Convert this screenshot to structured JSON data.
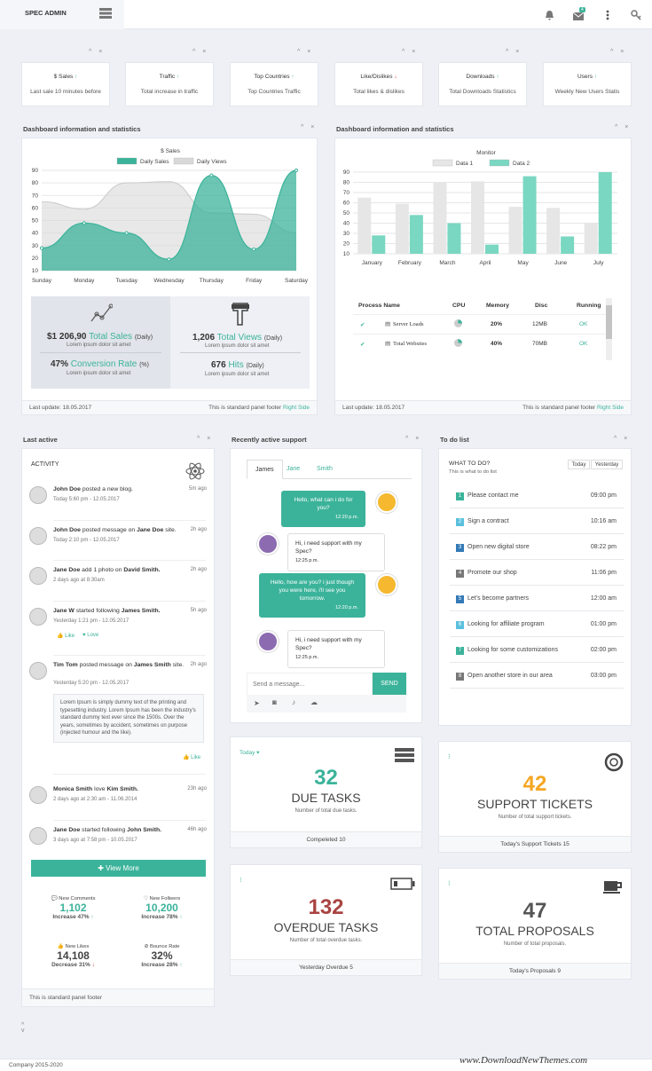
{
  "header": {
    "brand": "SPEC ADMIN",
    "notif_count": "4"
  },
  "stats": [
    {
      "title": "$ Sales",
      "sub": "Last sale 10 minutes before",
      "trend": "up"
    },
    {
      "title": "Traffic",
      "sub": "Total increase in traffic",
      "trend": "up"
    },
    {
      "title": "Top Countries",
      "sub": "Top Countries Traffic",
      "trend": "up"
    },
    {
      "title": "Like/Dislikes",
      "sub": "Total likes & dislikes",
      "trend": "down"
    },
    {
      "title": "Downloads",
      "sub": "Total Downloads Statistics",
      "trend": "up"
    },
    {
      "title": "Users",
      "sub": "Weekly New Users Statis",
      "trend": "up"
    }
  ],
  "panel1": {
    "title": "Dashboard information and statistics",
    "footer_left": "Last update: 18.05.2017",
    "footer_right_text": "This is standard panel footer",
    "footer_right_link": "Right Side",
    "sales_amount": "$1 206,90",
    "sales_label": "Total Sales",
    "sales_period": "(Daily)",
    "sales_sub": "Lorem ipsum dolor sit amet",
    "conv_amount": "47%",
    "conv_label": "Conversion Rate",
    "conv_period": "(%)",
    "conv_sub": "Lorem ipsum dolor sit amet",
    "views_amount": "1,206",
    "views_label": "Total Views",
    "views_period": "(Daily)",
    "views_sub": "Lorem ipsum dolor sit amet",
    "hits_amount": "676",
    "hits_label": "Hits",
    "hits_period": "(Daily)",
    "hits_sub": "Lorem ipsum dolor sit amet"
  },
  "panel2": {
    "title": "Dashboard information and statistics",
    "footer_left": "Last update: 18.05.2017",
    "footer_right_text": "This is standard panel footer",
    "footer_right_link": "Right Side",
    "process_headers": [
      "Process Name",
      "CPU",
      "Memory",
      "Disc",
      "Running"
    ],
    "processes": [
      {
        "name": "Server Loads",
        "memory": "20%",
        "disc": "12MB",
        "running": "OK"
      },
      {
        "name": "Total Websites",
        "memory": "40%",
        "disc": "70MB",
        "running": "OK"
      }
    ]
  },
  "chart_data": [
    {
      "type": "area",
      "title": "$ Sales",
      "categories": [
        "Sunday",
        "Monday",
        "Tuesday",
        "Wednesday",
        "Thursday",
        "Friday",
        "Saturday"
      ],
      "yticks": [
        10,
        20,
        30,
        40,
        50,
        60,
        70,
        80,
        90
      ],
      "ylim": [
        10,
        90
      ],
      "legend": "top",
      "series": [
        {
          "name": "Daily Sales",
          "values": [
            28,
            48,
            40,
            19,
            86,
            27,
            90
          ],
          "color": "#3bb39a"
        },
        {
          "name": "Daily Views",
          "values": [
            65,
            59,
            80,
            81,
            56,
            55,
            40
          ],
          "color": "#d9d9d9"
        }
      ]
    },
    {
      "type": "bar",
      "title": "Monitor",
      "categories": [
        "January",
        "February",
        "March",
        "April",
        "May",
        "June",
        "July"
      ],
      "yticks": [
        10,
        20,
        30,
        40,
        50,
        60,
        70,
        80,
        90
      ],
      "ylim": [
        10,
        90
      ],
      "legend": "top",
      "series": [
        {
          "name": "Data 1",
          "values": [
            65,
            59,
            80,
            81,
            56,
            55,
            40
          ],
          "color": "#e6e6e6"
        },
        {
          "name": "Data 2",
          "values": [
            28,
            48,
            40,
            19,
            86,
            27,
            90
          ],
          "color": "#7ad7c1"
        }
      ]
    }
  ],
  "activity": {
    "title": "Last active",
    "heading": "ACTIVITY",
    "view_more": "View More",
    "footer": "This is standard panel footer",
    "items": [
      {
        "actor": "John Doe",
        "action": "posted a new blog.",
        "time": "Today 5:60 pm - 12.05.2017",
        "ago": "5m ago"
      },
      {
        "actor": "John Doe",
        "action": "posted message on",
        "target": "Jane Doe",
        "tail": "site.",
        "time": "Today 2:10 pm - 12.05.2017",
        "ago": "2h ago"
      },
      {
        "actor": "Jane Doe",
        "action": "add 1 photo on",
        "target": "David Smith.",
        "time": "2 days ago at 8:30am",
        "ago": "2h ago"
      },
      {
        "actor": "Jane W",
        "action": "started following",
        "target": "James Smith.",
        "time": "Yesterday 1:21 pm - 12.05.2017",
        "ago": "5h ago",
        "like": "Like",
        "love": "Love"
      },
      {
        "actor": "Tim Tom",
        "action": "posted message on",
        "target": "James Smith",
        "tail": "site.",
        "time": "Yesterday 5:20 pm - 12.05.2017",
        "ago": "2h ago",
        "quote": "Lorem Ipsum is simply dummy text of the printing and typesetting industry. Lorem Ipsum has been the industry's standard dummy text ever since the 1500s. Over the years, sometimes by accident, sometimes on purpose (injected humour and the like).",
        "like": "Like"
      },
      {
        "actor": "Monica Smith",
        "action": "love",
        "target": "Kim Smith.",
        "time": "2 days ago at 2:30 am - 11.06.2014",
        "ago": "23h ago"
      },
      {
        "actor": "Jane Doe",
        "action": "started following",
        "target": "John Smith.",
        "time": "3 days ago at 7:58 pm - 10.05.2017",
        "ago": "46h ago"
      }
    ],
    "metrics": [
      {
        "label": "New Comments",
        "value": "1,102",
        "change": "Increase 47%"
      },
      {
        "label": "New Follwers",
        "value": "10,200",
        "change": "Increase 78%"
      },
      {
        "label": "New Likes",
        "value": "14,108",
        "change": "Decrease 31%"
      },
      {
        "label": "Bounce Rate",
        "value": "32%",
        "change": "Increase 28%"
      }
    ]
  },
  "support": {
    "title": "Recently active support",
    "tabs": [
      "James",
      "Jane",
      "Smith"
    ],
    "messages": [
      {
        "text": "Hello, what can i do for you?",
        "time": "12:20 p.m."
      },
      {
        "text": "Hi, i need support with my Spec?",
        "time": "12:25 p.m."
      },
      {
        "text": "Hello, how are you? i just though you were here, i'll see you tomorrow.",
        "time": "12:20 p.m."
      },
      {
        "text": "Hi, i need support with my Spec?",
        "time": "12:25 p.m."
      }
    ],
    "placeholder": "Send a message...",
    "send": "SEND"
  },
  "todo": {
    "title": "To do list",
    "heading": "WHAT TO DO?",
    "sub": "This is what to do list",
    "btn_today": "Today",
    "btn_yesterday": "Yesterday",
    "items": [
      {
        "n": "1",
        "label": "Please contact me",
        "time": "09:00 pm",
        "color": "#3bb39a"
      },
      {
        "n": "2",
        "label": "Sign a contract",
        "time": "10:16 am",
        "color": "#5bc0de"
      },
      {
        "n": "3",
        "label": "Open new digital store",
        "time": "08:22 pm",
        "color": "#337ab7"
      },
      {
        "n": "4",
        "label": "Promote our shop",
        "time": "11:06 pm",
        "color": "#777777"
      },
      {
        "n": "5",
        "label": "Let's become partners",
        "time": "12:00 am",
        "color": "#337ab7"
      },
      {
        "n": "6",
        "label": "Looking for affiliate program",
        "time": "01:00 pm",
        "color": "#5bc0de"
      },
      {
        "n": "7",
        "label": "Looking for some customizations",
        "time": "02:00 pm",
        "color": "#3bb39a"
      },
      {
        "n": "8",
        "label": "Open another store in our area",
        "time": "03:00 pm",
        "color": "#777777"
      }
    ]
  },
  "boxes": {
    "due": {
      "dropdown": "Today",
      "num": "32",
      "label": "DUE TASKS",
      "sub": "Number of total due tasks.",
      "footer": "Compeleted 10"
    },
    "support": {
      "num": "42",
      "label": "SUPPORT TICKETS",
      "sub": "Number of total support tickets.",
      "footer": "Today's Support Tickets 15"
    },
    "overdue": {
      "num": "132",
      "label": "OVERDUE TASKS",
      "sub": "Number of total overdue tasks.",
      "footer": "Yesterday Overdue 5"
    },
    "proposals": {
      "num": "47",
      "label": "TOTAL PROPOSALS",
      "sub": "Number of total proposals.",
      "footer": "Today's Proposals 9"
    }
  },
  "footer": {
    "copyright": "Company 2015-2020",
    "watermark": "www.DownloadNewThemes.com"
  }
}
